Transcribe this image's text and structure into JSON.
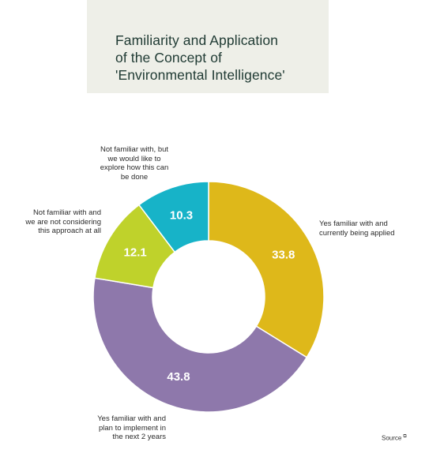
{
  "chart_data": {
    "type": "pie",
    "donut": true,
    "title_lines": [
      "Familiarity and Application",
      "of the Concept of",
      "'Environmental Intelligence'"
    ],
    "slices": [
      {
        "value": 33.8,
        "value_label": "33.8",
        "color": "#deb81a",
        "label_lines": [
          "Yes familiar with and",
          "currently being applied"
        ]
      },
      {
        "value": 43.8,
        "value_label": "43.8",
        "color": "#8e78ab",
        "label_lines": [
          "Yes familiar with and",
          "plan to implement in",
          "the next 2 years"
        ]
      },
      {
        "value": 12.1,
        "value_label": "12.1",
        "color": "#bfd22b",
        "label_lines": [
          "Not familiar with and",
          "we are not considering",
          "this approach at all"
        ]
      },
      {
        "value": 10.3,
        "value_label": "10.3",
        "color": "#17b3c8",
        "label_lines": [
          "Not familiar with, but",
          "we would like to",
          "explore how this can",
          "be done"
        ]
      }
    ]
  },
  "footer": {
    "source_label": "Source",
    "source_icon": "external-link-icon"
  }
}
